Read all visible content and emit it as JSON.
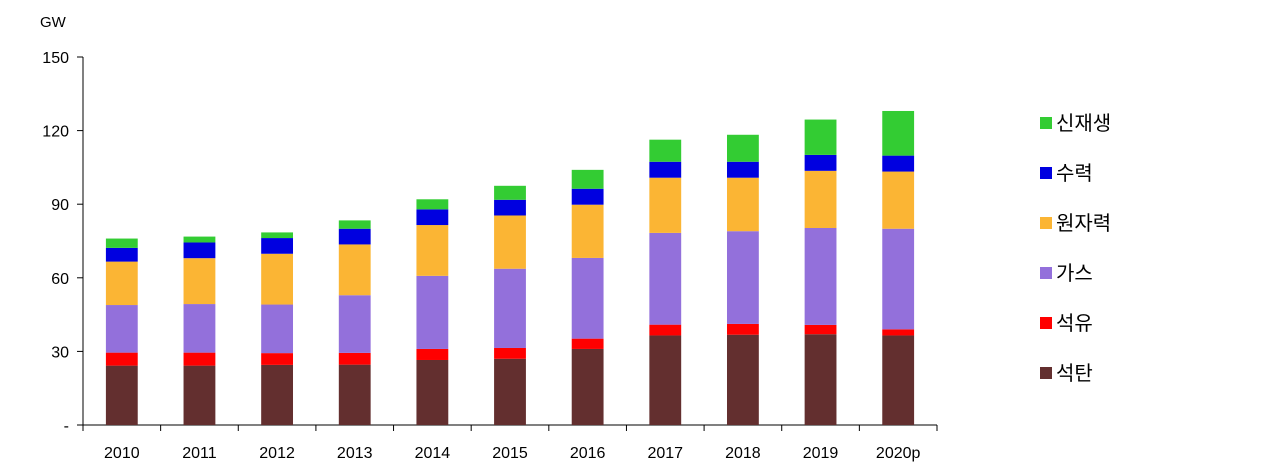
{
  "chart_data": {
    "type": "bar",
    "stacked": true,
    "unit_label": "GW",
    "ylim": [
      0,
      150
    ],
    "yticks": [
      0,
      30,
      60,
      90,
      120,
      150
    ],
    "ytick_labels": [
      "-",
      "30",
      "60",
      "90",
      "120",
      "150"
    ],
    "categories": [
      "2010",
      "2011",
      "2012",
      "2013",
      "2014",
      "2015",
      "2016",
      "2017",
      "2018",
      "2019",
      "2020p"
    ],
    "series": [
      {
        "name": "석탄",
        "color": "#632F2F",
        "values": [
          24.2,
          24.2,
          24.5,
          24.6,
          26.5,
          27.0,
          31.0,
          36.5,
          36.8,
          37.0,
          36.5
        ]
      },
      {
        "name": "석유",
        "color": "#FF0000",
        "values": [
          5.3,
          5.3,
          4.8,
          4.8,
          4.5,
          4.4,
          4.2,
          4.4,
          4.4,
          3.8,
          2.5
        ]
      },
      {
        "name": "가스",
        "color": "#9370DB",
        "values": [
          19.4,
          19.8,
          19.8,
          23.5,
          29.8,
          32.3,
          32.9,
          37.4,
          37.8,
          39.5,
          41.0
        ]
      },
      {
        "name": "원자력",
        "color": "#FBB534",
        "values": [
          17.7,
          18.7,
          20.7,
          20.7,
          20.7,
          21.7,
          21.7,
          22.5,
          21.8,
          23.3,
          23.3
        ]
      },
      {
        "name": "수력",
        "color": "#0000E0",
        "values": [
          5.6,
          6.4,
          6.4,
          6.4,
          6.4,
          6.4,
          6.5,
          6.5,
          6.5,
          6.5,
          6.5
        ]
      },
      {
        "name": "신재생",
        "color": "#33CC33",
        "values": [
          3.8,
          2.4,
          2.3,
          3.4,
          4.1,
          5.7,
          7.7,
          9.0,
          11.0,
          14.4,
          18.2
        ]
      }
    ],
    "legend_position": "right",
    "grid": false
  }
}
